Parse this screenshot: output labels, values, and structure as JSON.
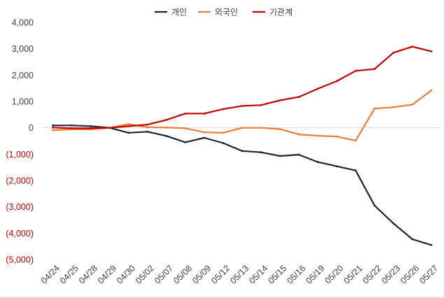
{
  "chart_data": {
    "type": "line",
    "categories": [
      "04/24",
      "04/25",
      "04/28",
      "04/29",
      "04/30",
      "05/02",
      "05/07",
      "05/08",
      "05/09",
      "05/12",
      "05/13",
      "05/14",
      "05/15",
      "05/16",
      "05/19",
      "05/20",
      "05/21",
      "05/22",
      "05/23",
      "05/26",
      "05/27"
    ],
    "series": [
      {
        "name": "개인",
        "color": "#1f2430",
        "values": [
          90,
          90,
          60,
          0,
          -190,
          -150,
          -310,
          -550,
          -380,
          -580,
          -880,
          -930,
          -1070,
          -1020,
          -1300,
          -1460,
          -1620,
          -2950,
          -3630,
          -4230,
          -4450
        ]
      },
      {
        "name": "외국인",
        "color": "#ed7d31",
        "values": [
          -90,
          -60,
          -60,
          0,
          140,
          20,
          10,
          -20,
          -170,
          -190,
          0,
          0,
          -50,
          -250,
          -300,
          -330,
          -490,
          730,
          780,
          880,
          1420
        ]
      },
      {
        "name": "기관계",
        "color": "#c00000",
        "values": [
          10,
          -20,
          -20,
          0,
          60,
          120,
          300,
          540,
          540,
          710,
          830,
          860,
          1040,
          1170,
          1480,
          1770,
          2160,
          2230,
          2850,
          3080,
          2900
        ]
      }
    ],
    "ylim": [
      -5000,
      4000
    ],
    "yticks": [
      {
        "value": 4000,
        "label": "4,000"
      },
      {
        "value": 3000,
        "label": "3,000"
      },
      {
        "value": 2000,
        "label": "2,000"
      },
      {
        "value": 1000,
        "label": "1,000"
      },
      {
        "value": 0,
        "label": "0"
      },
      {
        "value": -1000,
        "label": "(1,000)"
      },
      {
        "value": -2000,
        "label": "(2,000)"
      },
      {
        "value": -3000,
        "label": "(3,000)"
      },
      {
        "value": -4000,
        "label": "(4,000)"
      },
      {
        "value": -5000,
        "label": "(5,000)"
      }
    ],
    "negative_label_color": "#c00000",
    "positive_label_color": "#404040",
    "grid": false,
    "legend_position": "top-center"
  }
}
